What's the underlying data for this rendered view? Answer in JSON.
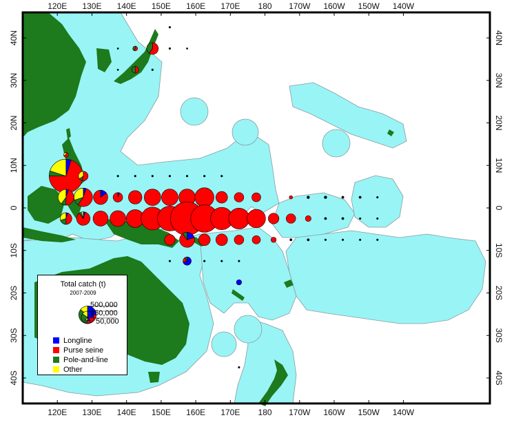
{
  "colors": {
    "ocean": "#ffffff",
    "eez": "#99f4f6",
    "eez_border": "#8a9a9c",
    "land": "#1d7a1d",
    "longline": "#0000ff",
    "purse_seine": "#ff0000",
    "pole_and_line": "#1f7a1f",
    "other": "#ffff00",
    "frame": "#000000"
  },
  "map": {
    "lon_min": 110,
    "lon_max": 245,
    "lat_min": -46,
    "lat_max": 46,
    "lon_ticks": [
      "120E",
      "130E",
      "140E",
      "150E",
      "160E",
      "170E",
      "180",
      "170W",
      "160W",
      "150W",
      "140W"
    ],
    "lat_ticks": [
      "40N",
      "30N",
      "20N",
      "10N",
      "0",
      "10S",
      "20S",
      "30S",
      "40S"
    ]
  },
  "legend": {
    "title": "Total catch (t)",
    "years": "2007-2009",
    "scale_labels": [
      "500,000",
      "250,000",
      "50,000"
    ],
    "items": [
      {
        "label": "Longline",
        "color_key": "longline"
      },
      {
        "label": "Purse seine",
        "color_key": "purse_seine"
      },
      {
        "label": "Pole-and-line",
        "color_key": "pole_and_line"
      },
      {
        "label": "Other",
        "color_key": "other"
      }
    ]
  },
  "catch_cells": [
    {
      "lon": 122.5,
      "lat": 7.5,
      "total": 500000,
      "pl": 0.05,
      "ps": 0.7,
      "pol": 0.05,
      "ot": 0.2
    },
    {
      "lon": 127.5,
      "lat": 7.5,
      "total": 40000,
      "pl": 0.0,
      "ps": 0.55,
      "pol": 0.1,
      "ot": 0.35
    },
    {
      "lon": 122.5,
      "lat": 2.5,
      "total": 110000,
      "pl": 0.05,
      "ps": 0.45,
      "pol": 0.1,
      "ot": 0.4
    },
    {
      "lon": 127.5,
      "lat": 2.5,
      "total": 150000,
      "pl": 0.05,
      "ps": 0.55,
      "pol": 0.1,
      "ot": 0.3
    },
    {
      "lon": 122.5,
      "lat": -2.5,
      "total": 60000,
      "pl": 0.05,
      "ps": 0.45,
      "pol": 0.2,
      "ot": 0.3
    },
    {
      "lon": 127.5,
      "lat": -2.5,
      "total": 80000,
      "pl": 0.05,
      "ps": 0.85,
      "pol": 0.05,
      "ot": 0.05
    },
    {
      "lon": 132.5,
      "lat": 2.5,
      "total": 90000,
      "pl": 0.15,
      "ps": 0.85,
      "pol": 0.0,
      "ot": 0.0
    },
    {
      "lon": 137.5,
      "lat": 2.5,
      "total": 40000,
      "pl": 0.05,
      "ps": 0.95,
      "pol": 0.0,
      "ot": 0.0
    },
    {
      "lon": 142.5,
      "lat": 2.5,
      "total": 80000,
      "pl": 0.0,
      "ps": 1.0,
      "pol": 0.0,
      "ot": 0.0
    },
    {
      "lon": 147.5,
      "lat": 2.5,
      "total": 120000,
      "pl": 0.0,
      "ps": 1.0,
      "pol": 0.0,
      "ot": 0.0
    },
    {
      "lon": 152.5,
      "lat": 2.5,
      "total": 120000,
      "pl": 0.0,
      "ps": 1.0,
      "pol": 0.0,
      "ot": 0.0
    },
    {
      "lon": 157.5,
      "lat": 2.5,
      "total": 120000,
      "pl": 0.0,
      "ps": 1.0,
      "pol": 0.0,
      "ot": 0.0
    },
    {
      "lon": 162.5,
      "lat": 2.5,
      "total": 160000,
      "pl": 0.0,
      "ps": 1.0,
      "pol": 0.0,
      "ot": 0.0
    },
    {
      "lon": 167.5,
      "lat": 2.5,
      "total": 60000,
      "pl": 0.0,
      "ps": 1.0,
      "pol": 0.0,
      "ot": 0.0
    },
    {
      "lon": 172.5,
      "lat": 2.5,
      "total": 40000,
      "pl": 0.0,
      "ps": 1.0,
      "pol": 0.0,
      "ot": 0.0
    },
    {
      "lon": 177.5,
      "lat": 2.5,
      "total": 35000,
      "pl": 0.0,
      "ps": 1.0,
      "pol": 0.0,
      "ot": 0.0
    },
    {
      "lon": 132.5,
      "lat": -2.5,
      "total": 100000,
      "pl": 0.0,
      "ps": 1.0,
      "pol": 0.0,
      "ot": 0.0
    },
    {
      "lon": 137.5,
      "lat": -2.5,
      "total": 110000,
      "pl": 0.0,
      "ps": 1.0,
      "pol": 0.0,
      "ot": 0.0
    },
    {
      "lon": 142.5,
      "lat": -2.5,
      "total": 140000,
      "pl": 0.0,
      "ps": 1.0,
      "pol": 0.0,
      "ot": 0.0
    },
    {
      "lon": 147.5,
      "lat": -2.5,
      "total": 230000,
      "pl": 0.0,
      "ps": 1.0,
      "pol": 0.0,
      "ot": 0.0
    },
    {
      "lon": 152.5,
      "lat": -2.5,
      "total": 270000,
      "pl": 0.0,
      "ps": 1.0,
      "pol": 0.0,
      "ot": 0.0
    },
    {
      "lon": 157.5,
      "lat": -2.5,
      "total": 490000,
      "pl": 0.0,
      "ps": 1.0,
      "pol": 0.0,
      "ot": 0.0
    },
    {
      "lon": 162.5,
      "lat": -2.5,
      "total": 330000,
      "pl": 0.0,
      "ps": 1.0,
      "pol": 0.0,
      "ot": 0.0
    },
    {
      "lon": 167.5,
      "lat": -2.5,
      "total": 220000,
      "pl": 0.0,
      "ps": 1.0,
      "pol": 0.0,
      "ot": 0.0
    },
    {
      "lon": 172.5,
      "lat": -2.5,
      "total": 190000,
      "pl": 0.0,
      "ps": 1.0,
      "pol": 0.0,
      "ot": 0.0
    },
    {
      "lon": 177.5,
      "lat": -2.5,
      "total": 150000,
      "pl": 0.0,
      "ps": 1.0,
      "pol": 0.0,
      "ot": 0.0
    },
    {
      "lon": 182.5,
      "lat": -2.5,
      "total": 50000,
      "pl": 0.0,
      "ps": 1.0,
      "pol": 0.0,
      "ot": 0.0
    },
    {
      "lon": 187.5,
      "lat": -2.5,
      "total": 40000,
      "pl": 0.0,
      "ps": 1.0,
      "pol": 0.0,
      "ot": 0.0
    },
    {
      "lon": 192.5,
      "lat": -2.5,
      "total": 15000,
      "pl": 0.0,
      "ps": 1.0,
      "pol": 0.0,
      "ot": 0.0
    },
    {
      "lon": 152.5,
      "lat": -7.5,
      "total": 50000,
      "pl": 0.0,
      "ps": 1.0,
      "pol": 0.0,
      "ot": 0.0
    },
    {
      "lon": 157.5,
      "lat": -7.5,
      "total": 100000,
      "pl": 0.2,
      "ps": 0.7,
      "pol": 0.1,
      "ot": 0.0
    },
    {
      "lon": 162.5,
      "lat": -7.5,
      "total": 60000,
      "pl": 0.0,
      "ps": 1.0,
      "pol": 0.0,
      "ot": 0.0
    },
    {
      "lon": 167.5,
      "lat": -7.5,
      "total": 60000,
      "pl": 0.0,
      "ps": 1.0,
      "pol": 0.0,
      "ot": 0.0
    },
    {
      "lon": 172.5,
      "lat": -7.5,
      "total": 40000,
      "pl": 0.0,
      "ps": 1.0,
      "pol": 0.0,
      "ot": 0.0
    },
    {
      "lon": 177.5,
      "lat": -7.5,
      "total": 30000,
      "pl": 0.0,
      "ps": 1.0,
      "pol": 0.0,
      "ot": 0.0
    },
    {
      "lon": 182.5,
      "lat": -7.5,
      "total": 12000,
      "pl": 0.0,
      "ps": 1.0,
      "pol": 0.0,
      "ot": 0.0
    },
    {
      "lon": 157.5,
      "lat": -12.5,
      "total": 30000,
      "pl": 0.7,
      "ps": 0.2,
      "pol": 0.1,
      "ot": 0.0
    },
    {
      "lon": 172.5,
      "lat": -17.5,
      "total": 12000,
      "pl": 1.0,
      "ps": 0.0,
      "pol": 0.0,
      "ot": 0.0
    },
    {
      "lon": 147.5,
      "lat": 37.5,
      "total": 60000,
      "pl": 0.0,
      "ps": 0.6,
      "pol": 0.4,
      "ot": 0.0
    },
    {
      "lon": 142.5,
      "lat": 32.5,
      "total": 20000,
      "pl": 0.0,
      "ps": 0.5,
      "pol": 0.5,
      "ot": 0.0
    },
    {
      "lon": 142.5,
      "lat": 37.5,
      "total": 10000,
      "pl": 0.0,
      "ps": 0.6,
      "pol": 0.4,
      "ot": 0.0
    },
    {
      "lon": 122.5,
      "lat": 12.5,
      "total": 10000,
      "pl": 0.0,
      "ps": 0.7,
      "pol": 0.0,
      "ot": 0.3
    },
    {
      "lon": 187.5,
      "lat": 2.5,
      "total": 5000,
      "pl": 0.0,
      "ps": 1.0,
      "pol": 0.0,
      "ot": 0.0
    },
    {
      "lon": 192.5,
      "lat": 2.5,
      "total": 4000,
      "pl": 0.0,
      "ps": 1.0,
      "pol": 0.0,
      "ot": 0.0
    },
    {
      "lon": 197.5,
      "lat": 2.5,
      "total": 4000,
      "pl": 0.0,
      "ps": 1.0,
      "pol": 0.0,
      "ot": 0.0
    },
    {
      "lon": 202.5,
      "lat": 2.5,
      "total": 3000,
      "pl": 0.0,
      "ps": 1.0,
      "pol": 0.0,
      "ot": 0.0
    },
    {
      "lon": 207.5,
      "lat": 2.5,
      "total": 3000,
      "pl": 0.0,
      "ps": 1.0,
      "pol": 0.0,
      "ot": 0.0
    },
    {
      "lon": 212.5,
      "lat": 2.5,
      "total": 2000,
      "pl": 0.0,
      "ps": 1.0,
      "pol": 0.0,
      "ot": 0.0
    },
    {
      "lon": 197.5,
      "lat": -2.5,
      "total": 3000,
      "pl": 0.0,
      "ps": 1.0,
      "pol": 0.0,
      "ot": 0.0
    },
    {
      "lon": 202.5,
      "lat": -2.5,
      "total": 3000,
      "pl": 0.0,
      "ps": 1.0,
      "pol": 0.0,
      "ot": 0.0
    },
    {
      "lon": 207.5,
      "lat": -2.5,
      "total": 2000,
      "pl": 0.0,
      "ps": 1.0,
      "pol": 0.0,
      "ot": 0.0
    },
    {
      "lon": 212.5,
      "lat": -2.5,
      "total": 2000,
      "pl": 0.0,
      "ps": 1.0,
      "pol": 0.0,
      "ot": 0.0
    },
    {
      "lon": 187.5,
      "lat": -7.5,
      "total": 3000,
      "pl": 0.0,
      "ps": 1.0,
      "pol": 0.0,
      "ot": 0.0
    },
    {
      "lon": 192.5,
      "lat": -7.5,
      "total": 3000,
      "pl": 0.0,
      "ps": 1.0,
      "pol": 0.0,
      "ot": 0.0
    },
    {
      "lon": 197.5,
      "lat": -7.5,
      "total": 2000,
      "pl": 0.0,
      "ps": 1.0,
      "pol": 0.0,
      "ot": 0.0
    },
    {
      "lon": 202.5,
      "lat": -7.5,
      "total": 2000,
      "pl": 0.0,
      "ps": 1.0,
      "pol": 0.0,
      "ot": 0.0
    },
    {
      "lon": 207.5,
      "lat": -7.5,
      "total": 2000,
      "pl": 0.0,
      "ps": 1.0,
      "pol": 0.0,
      "ot": 0.0
    },
    {
      "lon": 212.5,
      "lat": -7.5,
      "total": 2000,
      "pl": 0.0,
      "ps": 1.0,
      "pol": 0.0,
      "ot": 0.0
    },
    {
      "lon": 152.5,
      "lat": -12.5,
      "total": 2000,
      "pl": 0.0,
      "ps": 1.0,
      "pol": 0.0,
      "ot": 0.0
    },
    {
      "lon": 162.5,
      "lat": -12.5,
      "total": 2000,
      "pl": 0.0,
      "ps": 1.0,
      "pol": 0.0,
      "ot": 0.0
    },
    {
      "lon": 167.5,
      "lat": -12.5,
      "total": 2000,
      "pl": 0.0,
      "ps": 1.0,
      "pol": 0.0,
      "ot": 0.0
    },
    {
      "lon": 172.5,
      "lat": -12.5,
      "total": 2000,
      "pl": 0.0,
      "ps": 1.0,
      "pol": 0.0,
      "ot": 0.0
    },
    {
      "lon": 137.5,
      "lat": 7.5,
      "total": 2000,
      "pl": 0.0,
      "ps": 1.0,
      "pol": 0.0,
      "ot": 0.0
    },
    {
      "lon": 142.5,
      "lat": 7.5,
      "total": 2000,
      "pl": 0.0,
      "ps": 1.0,
      "pol": 0.0,
      "ot": 0.0
    },
    {
      "lon": 147.5,
      "lat": 7.5,
      "total": 2000,
      "pl": 0.0,
      "ps": 1.0,
      "pol": 0.0,
      "ot": 0.0
    },
    {
      "lon": 152.5,
      "lat": 7.5,
      "total": 2000,
      "pl": 0.0,
      "ps": 1.0,
      "pol": 0.0,
      "ot": 0.0
    },
    {
      "lon": 157.5,
      "lat": 7.5,
      "total": 2000,
      "pl": 0.0,
      "ps": 1.0,
      "pol": 0.0,
      "ot": 0.0
    },
    {
      "lon": 162.5,
      "lat": 7.5,
      "total": 2000,
      "pl": 0.0,
      "ps": 1.0,
      "pol": 0.0,
      "ot": 0.0
    },
    {
      "lon": 167.5,
      "lat": 7.5,
      "total": 2000,
      "pl": 0.0,
      "ps": 1.0,
      "pol": 0.0,
      "ot": 0.0
    },
    {
      "lon": 147.5,
      "lat": 32.5,
      "total": 2000,
      "pl": 0.0,
      "ps": 1.0,
      "pol": 0.0,
      "ot": 0.0
    },
    {
      "lon": 152.5,
      "lat": 37.5,
      "total": 2000,
      "pl": 0.0,
      "ps": 1.0,
      "pol": 0.0,
      "ot": 0.0
    },
    {
      "lon": 152.5,
      "lat": 42.5,
      "total": 2000,
      "pl": 0.0,
      "ps": 1.0,
      "pol": 0.0,
      "ot": 0.0
    },
    {
      "lon": 157.5,
      "lat": 37.5,
      "total": 1500,
      "pl": 0.0,
      "ps": 1.0,
      "pol": 0.0,
      "ot": 0.0
    },
    {
      "lon": 137.5,
      "lat": 32.5,
      "total": 1500,
      "pl": 0.0,
      "ps": 1.0,
      "pol": 0.0,
      "ot": 0.0
    },
    {
      "lon": 137.5,
      "lat": 37.5,
      "total": 1500,
      "pl": 0.0,
      "ps": 1.0,
      "pol": 0.0,
      "ot": 0.0
    },
    {
      "lon": 172.5,
      "lat": -37.5,
      "total": 2000,
      "pl": 1.0,
      "ps": 0.0,
      "pol": 0.0,
      "ot": 0.0
    }
  ]
}
